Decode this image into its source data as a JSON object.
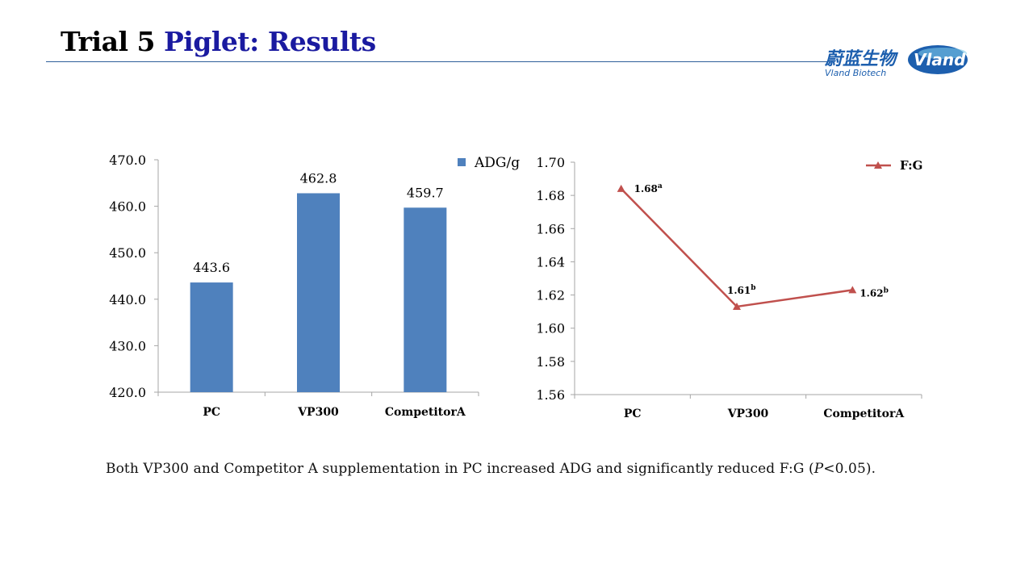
{
  "header": {
    "title_part1": "Trial 5",
    "title_part2": "Piglet: Results"
  },
  "logo": {
    "chinese_text": "蔚蓝生物",
    "english_text": "Vland  Biotech",
    "badge_text": "Vland"
  },
  "colors": {
    "title_black": "#000000",
    "title_blue": "#1a1aa0",
    "bar_blue": "#4f81bd",
    "line_red": "#c0504d",
    "rule_blue": "#2f5f9a"
  },
  "chart_data": [
    {
      "type": "bar",
      "categories": [
        "PC",
        "VP300",
        "CompetitorA"
      ],
      "series": [
        {
          "name": "ADG/g",
          "values": [
            443.6,
            462.8,
            459.7
          ]
        }
      ],
      "value_labels": [
        "443.6",
        "462.8",
        "459.7"
      ],
      "y_ticks": [
        "420.0",
        "430.0",
        "440.0",
        "450.0",
        "460.0",
        "470.0"
      ],
      "ylim": [
        420,
        470
      ],
      "legend": "top-right",
      "grid": false
    },
    {
      "type": "line",
      "categories": [
        "PC",
        "VP300",
        "CompetitorA"
      ],
      "series": [
        {
          "name": "F:G",
          "values": [
            1.684,
            1.613,
            1.623
          ]
        }
      ],
      "point_labels": [
        {
          "value": "1.68",
          "sup": "a"
        },
        {
          "value": "1.61",
          "sup": "b"
        },
        {
          "value": "1.62",
          "sup": "b"
        }
      ],
      "y_ticks": [
        "1.56",
        "1.58",
        "1.60",
        "1.62",
        "1.64",
        "1.66",
        "1.68",
        "1.70"
      ],
      "ylim": [
        1.56,
        1.7
      ],
      "legend": "top-right",
      "grid": false
    }
  ],
  "footnote": {
    "before": "Both VP300 and Competitor A supplementation in PC increased ADG and significantly reduced F:G (",
    "italic": "P",
    "after": "<0.05)."
  }
}
